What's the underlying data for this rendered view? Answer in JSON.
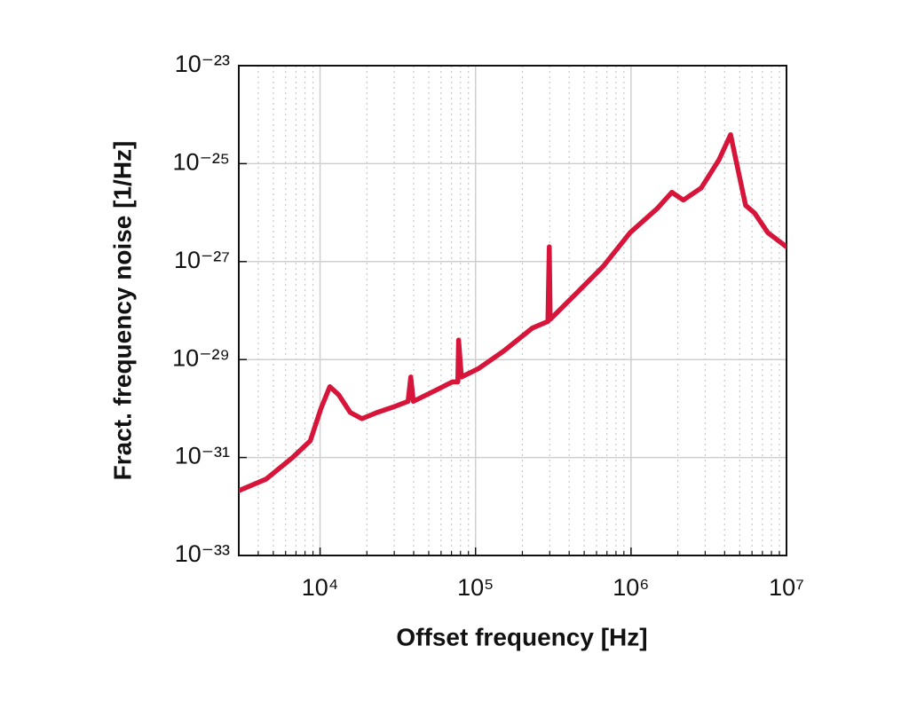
{
  "chart_data": {
    "type": "line",
    "xlabel": "Offset frequency [Hz]",
    "ylabel": "Fract. frequency noise [1/Hz]",
    "xscale": "log",
    "yscale": "log",
    "grid": true,
    "xlim": [
      3000,
      10000000
    ],
    "ylim": [
      1e-33,
      1e-23
    ],
    "xticks": [
      {
        "value": 10000,
        "label": "10⁴"
      },
      {
        "value": 100000,
        "label": "10⁵"
      },
      {
        "value": 1000000,
        "label": "10⁶"
      },
      {
        "value": 10000000,
        "label": "10⁷"
      }
    ],
    "yticks": [
      {
        "value": 1e-33,
        "label": "10⁻³³"
      },
      {
        "value": 1e-31,
        "label": "10⁻³¹"
      },
      {
        "value": 1e-29,
        "label": "10⁻²⁹"
      },
      {
        "value": 1e-27,
        "label": "10⁻²⁷"
      },
      {
        "value": 1e-25,
        "label": "10⁻²⁵"
      },
      {
        "value": 1e-23,
        "label": "10⁻²³"
      }
    ],
    "x": [
      3000,
      4480,
      6650,
      8650,
      10130,
      11550,
      13180,
      15640,
      18570,
      23230,
      30200,
      36800,
      38300,
      39800,
      54600,
      71000,
      76900,
      77800,
      81100,
      105000,
      152000,
      232000,
      292000,
      298000,
      302000,
      448000,
      665000,
      986000,
      1470000,
      1830000,
      2170000,
      2830000,
      3680000,
      4370000,
      4790000,
      5460000,
      6230000,
      7580000,
      10000000
    ],
    "series": [
      {
        "color": "#d7153a",
        "values": [
          2.1e-32,
          3.6e-32,
          1e-31,
          2.2e-31,
          1e-30,
          2.8e-30,
          1.9e-30,
          8.3e-31,
          6.2e-31,
          8.3e-31,
          1.1e-30,
          1.4e-30,
          4.4e-30,
          1.4e-30,
          2.3e-30,
          3.5e-30,
          3.5e-30,
          2.5e-29,
          4.4e-30,
          6.6e-30,
          1.5e-29,
          4.4e-29,
          6e-29,
          2e-27,
          6.6e-29,
          2.3e-28,
          8.1e-28,
          3.9e-27,
          1.2e-26,
          2.6e-26,
          1.8e-26,
          3.2e-26,
          1.2e-25,
          3.9e-25,
          9.8e-26,
          1.4e-26,
          9.8e-27,
          3.9e-27,
          2e-27
        ]
      }
    ]
  }
}
